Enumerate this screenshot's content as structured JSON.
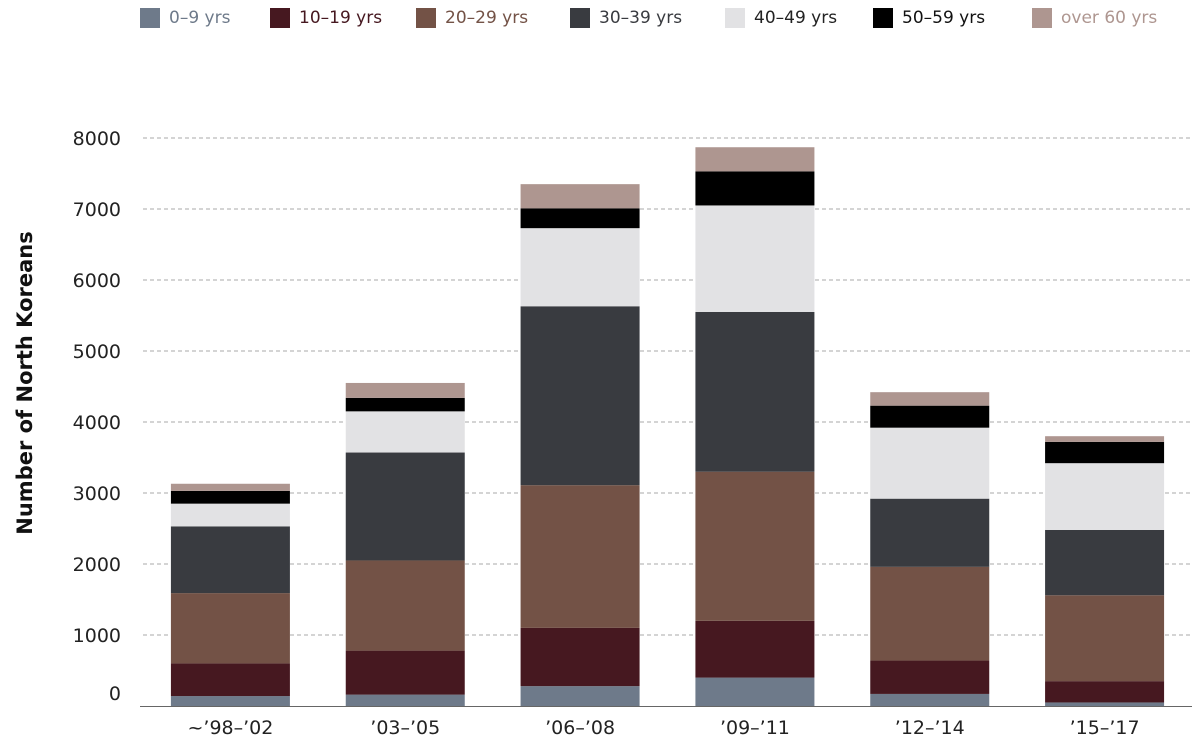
{
  "chart_data": {
    "type": "bar",
    "stacked": true,
    "ylabel": "Number of North Koreans",
    "xlabel": "",
    "ylim": [
      0,
      8000
    ],
    "yticks": [
      0,
      1000,
      2000,
      3000,
      4000,
      5000,
      6000,
      7000,
      8000
    ],
    "grid": true,
    "legend_position": "top",
    "categories": [
      "~’98–’02",
      "’03–’05",
      "’06–’08",
      "’09–’11",
      "’12–’14",
      "’15–’17"
    ],
    "series": [
      {
        "name": "0–9 yrs",
        "color": "#6e7a8a",
        "label_color": "#6e7a8a",
        "values": [
          140,
          160,
          280,
          400,
          170,
          50
        ]
      },
      {
        "name": "10–19 yrs",
        "color": "#461820",
        "label_color": "#461820",
        "values": [
          460,
          620,
          820,
          800,
          470,
          300
        ]
      },
      {
        "name": "20–29 yrs",
        "color": "#735246",
        "label_color": "#735246",
        "values": [
          990,
          1270,
          2010,
          2100,
          1320,
          1210
        ]
      },
      {
        "name": "30–39 yrs",
        "color": "#393b40",
        "label_color": "#393b40",
        "values": [
          940,
          1520,
          2520,
          2250,
          960,
          920
        ]
      },
      {
        "name": "40–49 yrs",
        "color": "#e2e2e4",
        "label_color": "#222222",
        "values": [
          320,
          580,
          1100,
          1500,
          1000,
          940
        ]
      },
      {
        "name": "50–59 yrs",
        "color": "#000000",
        "label_color": "#111111",
        "values": [
          180,
          190,
          280,
          480,
          310,
          300
        ]
      },
      {
        "name": "over 60 yrs",
        "color": "#ae9690",
        "label_color": "#ae9690",
        "values": [
          100,
          210,
          340,
          340,
          190,
          80
        ]
      }
    ]
  }
}
